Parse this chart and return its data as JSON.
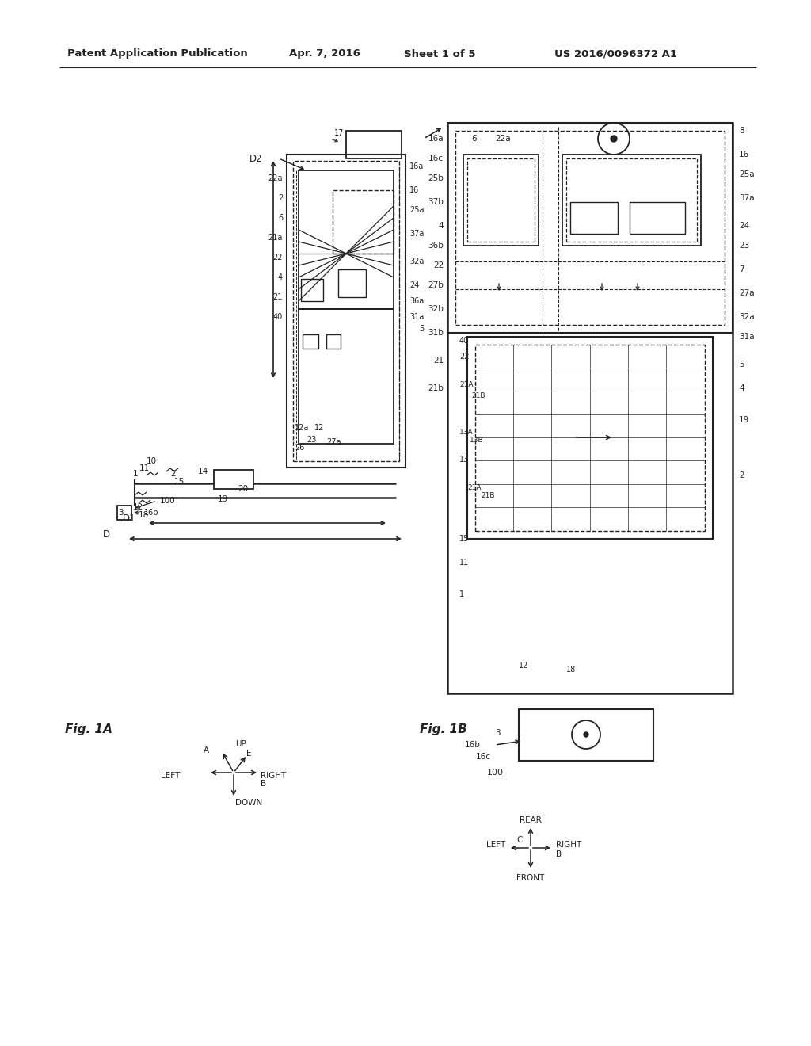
{
  "bg_color": "#ffffff",
  "header_text": "Patent Application Publication",
  "header_date": "Apr. 7, 2016",
  "header_sheet": "Sheet 1 of 5",
  "header_patent": "US 2016/0096372 A1",
  "fig1A_label": "Fig. 1A",
  "fig1B_label": "Fig. 1B",
  "text_color": "#222222",
  "line_color": "#222222"
}
